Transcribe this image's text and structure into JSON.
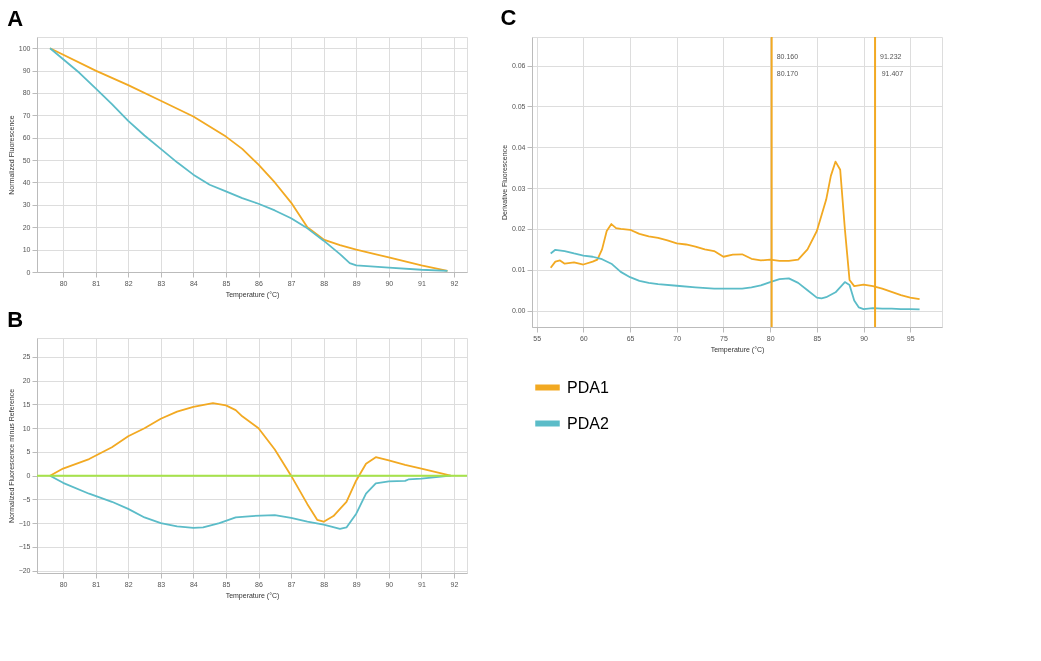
{
  "chart_data": [
    {
      "type": "line",
      "title": "A",
      "xlabel": "Temperature (°C)",
      "ylabel": "Normalized Fluorescence",
      "xlim": [
        79.2,
        92.4
      ],
      "ylim": [
        0,
        105
      ],
      "xticks": [
        80,
        81,
        82,
        83,
        84,
        85,
        86,
        87,
        88,
        89,
        90,
        91,
        92
      ],
      "yticks": [
        0,
        10,
        20,
        30,
        40,
        50,
        60,
        70,
        80,
        90,
        100
      ],
      "grid": true,
      "line_style": "solid",
      "marker": "none",
      "series": [
        {
          "color": "#f2a922",
          "x": [
            79.6,
            81,
            82,
            83,
            84,
            85,
            85.5,
            86,
            86.5,
            87,
            87.5,
            88,
            88.5,
            89,
            90,
            91,
            91.8
          ],
          "values": [
            100,
            90,
            83.5,
            76.5,
            69.5,
            60.5,
            55,
            48,
            40,
            31,
            20,
            14.5,
            12,
            10,
            6.5,
            3,
            0.5
          ]
        },
        {
          "color": "#5bbcc8",
          "x": [
            79.6,
            80.5,
            81,
            81.5,
            82,
            82.5,
            83,
            83.5,
            84,
            84.5,
            85,
            85.5,
            86,
            86.5,
            87,
            87.5,
            88,
            88.5,
            88.8,
            89,
            90,
            91,
            91.8
          ],
          "values": [
            100,
            89,
            82,
            75,
            67.5,
            61,
            55,
            49,
            43.5,
            39,
            36,
            33,
            30.5,
            27.5,
            24,
            19.5,
            14,
            8,
            4,
            3,
            2,
            1,
            0.5
          ]
        }
      ]
    },
    {
      "type": "line",
      "title": "B",
      "xlabel": "Temperature (°C)",
      "ylabel": "Normalized Fluorescence minus Reference",
      "xlim": [
        79.2,
        92.4
      ],
      "ylim": [
        -20.5,
        29
      ],
      "xticks": [
        80,
        81,
        82,
        83,
        84,
        85,
        86,
        87,
        88,
        89,
        90,
        91,
        92
      ],
      "yticks": [
        -20,
        -15,
        -10,
        -5,
        0,
        5,
        10,
        15,
        20,
        25
      ],
      "grid": true,
      "line_style": "solid",
      "marker": "none",
      "ref_lines": [
        {
          "axis": "y",
          "value": 0,
          "color": "#a6e34a"
        }
      ],
      "series": [
        {
          "color": "#f2a922",
          "x": [
            79.6,
            80,
            80.8,
            81.5,
            82,
            82.5,
            83,
            83.5,
            84,
            84.6,
            85,
            85.3,
            85.5,
            86,
            86.5,
            87,
            87.5,
            87.8,
            88,
            88.3,
            88.7,
            89,
            89.3,
            89.6,
            90,
            90.5,
            91,
            91.9
          ],
          "values": [
            0,
            1.5,
            3.5,
            6,
            8.3,
            10,
            12,
            13.5,
            14.5,
            15.3,
            14.8,
            13.8,
            12.5,
            10,
            5.5,
            0,
            -6,
            -9.3,
            -9.7,
            -8.5,
            -5.5,
            -1,
            2.5,
            3.9,
            3.2,
            2.3,
            1.5,
            0
          ]
        },
        {
          "color": "#5bbcc8",
          "x": [
            79.6,
            80,
            80.8,
            81.5,
            82,
            82.5,
            83,
            83.5,
            84,
            84.3,
            84.8,
            85.3,
            85.8,
            86.5,
            87,
            87.5,
            88,
            88.5,
            88.7,
            89,
            89.3,
            89.6,
            90,
            90.5,
            90.6,
            91,
            91.9
          ],
          "values": [
            0,
            -1.5,
            -3.8,
            -5.5,
            -7,
            -8.8,
            -10,
            -10.7,
            -11,
            -10.9,
            -10,
            -8.8,
            -8.5,
            -8.3,
            -8.9,
            -9.7,
            -10.3,
            -11.2,
            -10.9,
            -8,
            -3.8,
            -1.6,
            -1.2,
            -1.1,
            -0.8,
            -0.6,
            0
          ]
        }
      ]
    },
    {
      "type": "line",
      "title": "C",
      "xlabel": "Temperature (°C)",
      "ylabel": "Derivative Fluorescence",
      "xlim": [
        54.5,
        98.4
      ],
      "ylim": [
        -0.004,
        0.067
      ],
      "xticks": [
        55,
        60,
        65,
        70,
        75,
        80,
        85,
        90,
        95
      ],
      "yticks": [
        {
          "value": 0,
          "label": "0.00"
        },
        {
          "value": 0.01,
          "label": "0.01"
        },
        {
          "value": 0.02,
          "label": "0.02"
        },
        {
          "value": 0.03,
          "label": "0.03"
        },
        {
          "value": 0.04,
          "label": "0.04"
        },
        {
          "value": 0.05,
          "label": "0.05"
        },
        {
          "value": 0.06,
          "label": "0.06"
        }
      ],
      "grid": true,
      "legend": "bottom",
      "line_style": "solid",
      "marker": "none",
      "ref_lines": [
        {
          "axis": "x",
          "value": 80.16,
          "label": "80.160",
          "color": "#f2a922"
        },
        {
          "axis": "x",
          "value": 91.232,
          "label": "91.232",
          "color": "#f2a922"
        }
      ],
      "annotations": [
        {
          "text": "80.170",
          "x": 80.17,
          "y": 0.058
        },
        {
          "text": "91.407",
          "x": 91.407,
          "y": 0.058
        }
      ],
      "series": [
        {
          "name": "PDA1",
          "color": "#f2a922",
          "x": [
            56.5,
            57,
            57.5,
            58,
            59,
            60,
            61,
            61.5,
            62,
            62.5,
            63,
            63.5,
            64,
            65,
            66,
            67,
            68,
            69,
            70,
            71,
            72,
            73,
            74,
            75,
            76,
            77,
            78,
            79,
            80,
            81,
            82,
            83,
            84,
            85,
            86,
            86.5,
            87,
            87.5,
            88,
            88.5,
            89,
            90,
            91,
            92,
            93,
            94,
            95,
            96
          ],
          "values": [
            0.0105,
            0.012,
            0.0123,
            0.0115,
            0.0118,
            0.0113,
            0.012,
            0.0125,
            0.015,
            0.0195,
            0.0212,
            0.0202,
            0.02,
            0.0198,
            0.0188,
            0.0182,
            0.0178,
            0.0172,
            0.0165,
            0.0162,
            0.0157,
            0.015,
            0.0146,
            0.0132,
            0.0137,
            0.0138,
            0.0127,
            0.0123,
            0.0125,
            0.0122,
            0.0122,
            0.0125,
            0.015,
            0.0195,
            0.0272,
            0.033,
            0.0365,
            0.0345,
            0.02,
            0.0075,
            0.006,
            0.0064,
            0.006,
            0.0054,
            0.0046,
            0.0038,
            0.0032,
            0.0028
          ]
        },
        {
          "name": "PDA2",
          "color": "#5bbcc8",
          "x": [
            56.5,
            57,
            58,
            59,
            60,
            61,
            62,
            63,
            64,
            65,
            66,
            67,
            68,
            70,
            72,
            74,
            76,
            77,
            78,
            79,
            80,
            81,
            82,
            83,
            84,
            85,
            85.5,
            86,
            87,
            88,
            88.5,
            89,
            89.5,
            90,
            91,
            92,
            93,
            94,
            95,
            96
          ],
          "values": [
            0.014,
            0.0149,
            0.0146,
            0.014,
            0.0135,
            0.0132,
            0.0126,
            0.0115,
            0.0095,
            0.0082,
            0.0073,
            0.0068,
            0.0065,
            0.0061,
            0.0057,
            0.0054,
            0.0054,
            0.0054,
            0.0057,
            0.0062,
            0.007,
            0.0077,
            0.0079,
            0.0068,
            0.005,
            0.0032,
            0.003,
            0.0033,
            0.0045,
            0.007,
            0.0063,
            0.0025,
            0.0008,
            0.0004,
            0.0006,
            0.0005,
            0.0005,
            0.0004,
            0.0004,
            0.0003
          ]
        }
      ]
    }
  ]
}
